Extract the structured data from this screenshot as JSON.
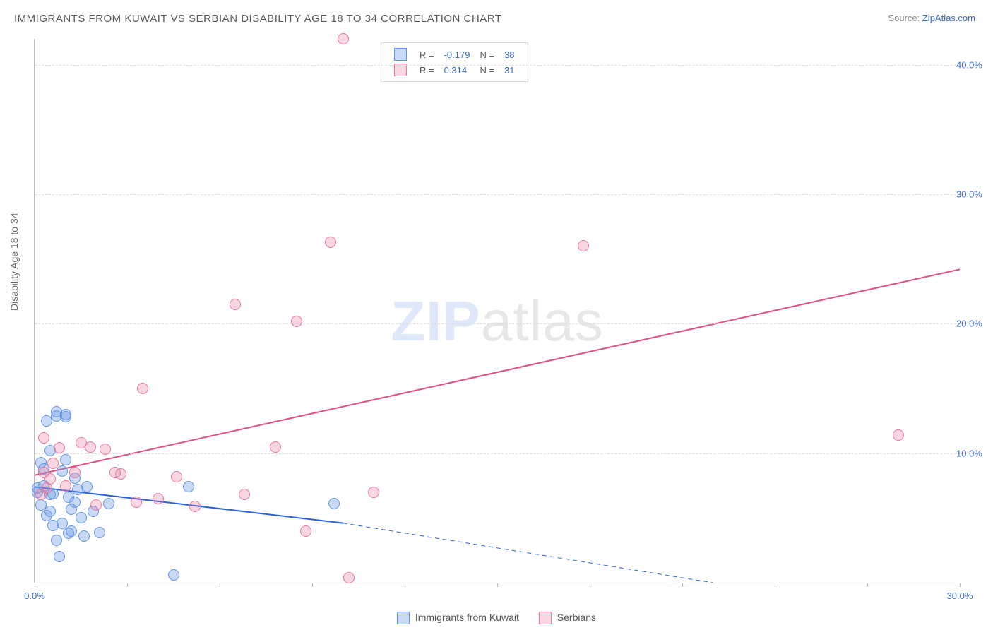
{
  "title": "IMMIGRANTS FROM KUWAIT VS SERBIAN DISABILITY AGE 18 TO 34 CORRELATION CHART",
  "source_prefix": "Source: ",
  "source_link": "ZipAtlas.com",
  "ylabel": "Disability Age 18 to 34",
  "watermark_a": "ZIP",
  "watermark_b": "atlas",
  "chart": {
    "type": "scatter",
    "background": "#ffffff",
    "grid_color": "#dddddd",
    "axis_color": "#bbbbbb",
    "xlim": [
      0,
      30
    ],
    "ylim": [
      0,
      42
    ],
    "xticks": [
      0,
      3,
      6,
      9,
      12,
      15,
      18,
      21,
      24,
      27,
      30
    ],
    "xtick_labels": {
      "0": "0.0%",
      "30": "30.0%"
    },
    "yticks": [
      10,
      20,
      30,
      40
    ],
    "ytick_labels": [
      "10.0%",
      "20.0%",
      "30.0%",
      "40.0%"
    ],
    "marker_radius": 8,
    "series": [
      {
        "name": "Immigrants from Kuwait",
        "fill": "rgba(99,148,229,0.35)",
        "stroke": "#6394e5",
        "line_color": "#2962d9",
        "line_width": 2,
        "R": "-0.179",
        "N": "38",
        "trend": {
          "x1": 0,
          "y1": 7.4,
          "x2": 10,
          "y2": 4.6,
          "dash_to_x": 22,
          "dash_to_y": 0
        },
        "points": [
          [
            0.1,
            7.0
          ],
          [
            0.1,
            7.3
          ],
          [
            0.2,
            6.0
          ],
          [
            0.2,
            9.3
          ],
          [
            0.3,
            7.5
          ],
          [
            0.3,
            8.8
          ],
          [
            0.4,
            5.2
          ],
          [
            0.4,
            12.5
          ],
          [
            0.5,
            5.5
          ],
          [
            0.5,
            6.8
          ],
          [
            0.5,
            10.2
          ],
          [
            0.6,
            4.4
          ],
          [
            0.6,
            6.9
          ],
          [
            0.7,
            3.3
          ],
          [
            0.7,
            12.9
          ],
          [
            0.7,
            13.2
          ],
          [
            0.8,
            2.0
          ],
          [
            0.9,
            4.6
          ],
          [
            0.9,
            8.6
          ],
          [
            1.0,
            9.5
          ],
          [
            1.0,
            12.8
          ],
          [
            1.0,
            13.0
          ],
          [
            1.1,
            3.8
          ],
          [
            1.1,
            6.6
          ],
          [
            1.2,
            4.0
          ],
          [
            1.2,
            5.7
          ],
          [
            1.3,
            8.1
          ],
          [
            1.3,
            6.2
          ],
          [
            1.4,
            7.2
          ],
          [
            1.5,
            5.0
          ],
          [
            1.6,
            3.6
          ],
          [
            1.7,
            7.4
          ],
          [
            1.9,
            5.5
          ],
          [
            2.1,
            3.9
          ],
          [
            2.4,
            6.1
          ],
          [
            4.5,
            0.6
          ],
          [
            5.0,
            7.4
          ],
          [
            9.7,
            6.1
          ]
        ]
      },
      {
        "name": "Serbians",
        "fill": "rgba(232,120,160,0.30)",
        "stroke": "#e878a0",
        "line_color": "#e05080",
        "line_width": 2,
        "R": "0.314",
        "N": "31",
        "trend": {
          "x1": 0,
          "y1": 8.3,
          "x2": 30,
          "y2": 24.2
        },
        "points": [
          [
            0.2,
            6.8
          ],
          [
            0.3,
            8.5
          ],
          [
            0.3,
            11.2
          ],
          [
            0.4,
            7.3
          ],
          [
            0.5,
            8.0
          ],
          [
            0.6,
            9.2
          ],
          [
            0.8,
            10.4
          ],
          [
            1.0,
            7.5
          ],
          [
            1.3,
            8.5
          ],
          [
            1.5,
            10.8
          ],
          [
            1.8,
            10.5
          ],
          [
            2.0,
            6.0
          ],
          [
            2.3,
            10.3
          ],
          [
            2.6,
            8.5
          ],
          [
            2.8,
            8.4
          ],
          [
            3.3,
            6.2
          ],
          [
            3.5,
            15.0
          ],
          [
            4.0,
            6.5
          ],
          [
            4.6,
            8.2
          ],
          [
            5.2,
            5.9
          ],
          [
            6.5,
            21.5
          ],
          [
            6.8,
            6.8
          ],
          [
            7.8,
            10.5
          ],
          [
            8.5,
            20.2
          ],
          [
            8.8,
            4.0
          ],
          [
            9.6,
            26.3
          ],
          [
            10.0,
            42.0
          ],
          [
            10.2,
            0.4
          ],
          [
            11.0,
            7.0
          ],
          [
            17.8,
            26.0
          ],
          [
            28.0,
            11.4
          ]
        ]
      }
    ]
  },
  "legend_labels": {
    "R": "R =",
    "N": "N ="
  },
  "tick_color": "#3868c8"
}
